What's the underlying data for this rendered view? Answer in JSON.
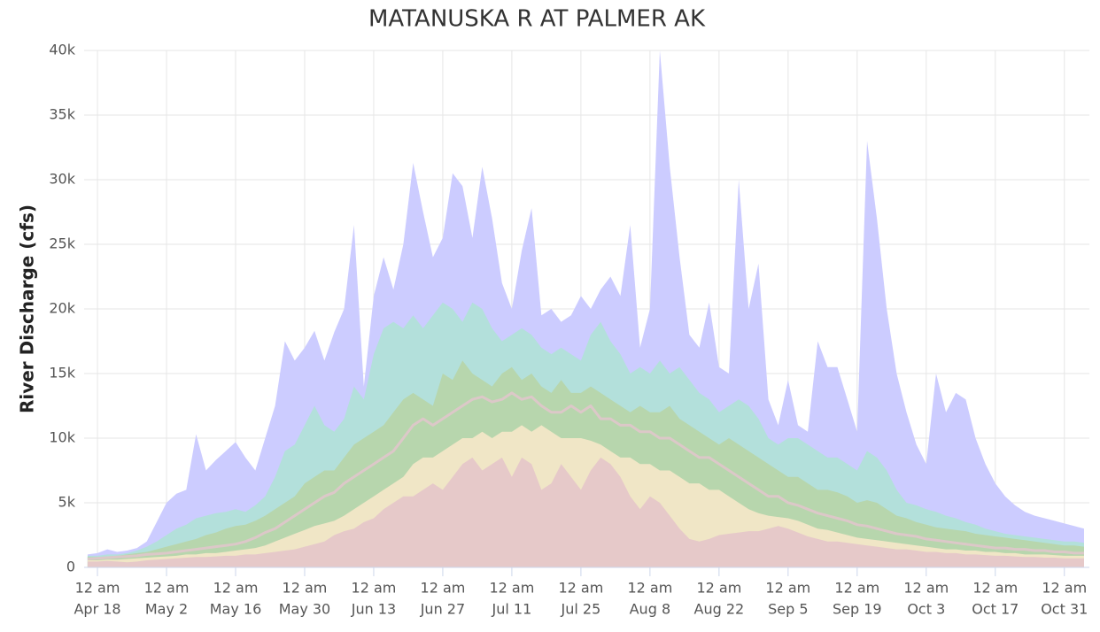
{
  "chart_data": {
    "type": "area",
    "title": "MATANUSKA R AT PALMER AK",
    "y_label": "River Discharge (cfs)",
    "x": [
      "Apr 16",
      "Apr 18",
      "Apr 20",
      "Apr 22",
      "Apr 24",
      "Apr 26",
      "Apr 28",
      "Apr 30",
      "May 2",
      "May 4",
      "May 6",
      "May 8",
      "May 10",
      "May 12",
      "May 14",
      "May 16",
      "May 18",
      "May 20",
      "May 22",
      "May 24",
      "May 26",
      "May 28",
      "May 30",
      "Jun 1",
      "Jun 3",
      "Jun 5",
      "Jun 7",
      "Jun 9",
      "Jun 11",
      "Jun 13",
      "Jun 15",
      "Jun 17",
      "Jun 19",
      "Jun 21",
      "Jun 23",
      "Jun 25",
      "Jun 27",
      "Jun 29",
      "Jul 1",
      "Jul 3",
      "Jul 5",
      "Jul 7",
      "Jul 9",
      "Jul 11",
      "Jul 13",
      "Jul 15",
      "Jul 17",
      "Jul 19",
      "Jul 21",
      "Jul 23",
      "Jul 25",
      "Jul 27",
      "Jul 29",
      "Jul 31",
      "Aug 2",
      "Aug 4",
      "Aug 6",
      "Aug 8",
      "Aug 10",
      "Aug 12",
      "Aug 14",
      "Aug 16",
      "Aug 18",
      "Aug 20",
      "Aug 22",
      "Aug 24",
      "Aug 26",
      "Aug 28",
      "Aug 30",
      "Sep 1",
      "Sep 3",
      "Sep 5",
      "Sep 7",
      "Sep 9",
      "Sep 11",
      "Sep 13",
      "Sep 15",
      "Sep 17",
      "Sep 19",
      "Sep 21",
      "Sep 23",
      "Sep 25",
      "Sep 27",
      "Sep 29",
      "Oct 1",
      "Oct 3",
      "Oct 5",
      "Oct 7",
      "Oct 9",
      "Oct 11",
      "Oct 13",
      "Oct 15",
      "Oct 17",
      "Oct 19",
      "Oct 21",
      "Oct 23",
      "Oct 25",
      "Oct 27",
      "Oct 29",
      "Oct 31",
      "Nov 2",
      "Nov 4"
    ],
    "xtick_time": "12 am",
    "xticks": [
      "Apr 18",
      "May 2",
      "May 16",
      "May 30",
      "Jun 13",
      "Jun 27",
      "Jul 11",
      "Jul 25",
      "Aug 8",
      "Aug 22",
      "Sep 5",
      "Sep 19",
      "Oct 3",
      "Oct 17",
      "Oct 31"
    ],
    "ylim": [
      0,
      40000
    ],
    "yticks": [
      0,
      {
        "value": 5000,
        "label": "5k"
      },
      {
        "value": 10000,
        "label": "10k"
      },
      {
        "value": 15000,
        "label": "15k"
      },
      {
        "value": 20000,
        "label": "20k"
      },
      {
        "value": 25000,
        "label": "25k"
      },
      {
        "value": 30000,
        "label": "30k"
      },
      {
        "value": 35000,
        "label": "35k"
      },
      {
        "value": 40000,
        "label": "40k"
      }
    ],
    "grid": true,
    "series": [
      {
        "type": "area",
        "color": "#ccccff",
        "values": [
          1000,
          1100,
          1400,
          1200,
          1300,
          1500,
          2000,
          3500,
          5000,
          5700,
          6000,
          10300,
          7500,
          8300,
          9000,
          9700,
          8500,
          7500,
          10000,
          12500,
          17500,
          16000,
          17000,
          18300,
          16000,
          18200,
          20000,
          26500,
          14000,
          21000,
          24000,
          21500,
          25000,
          31300,
          27500,
          24000,
          25500,
          30500,
          29500,
          25500,
          31000,
          27000,
          22000,
          20000,
          24500,
          27800,
          19500,
          20000,
          19000,
          19500,
          21000,
          20000,
          21500,
          22500,
          21000,
          26500,
          17000,
          20000,
          40000,
          31000,
          24000,
          18000,
          17000,
          20500,
          15500,
          15000,
          30000,
          20000,
          23500,
          13000,
          11000,
          14500,
          11000,
          10500,
          17500,
          15500,
          15500,
          13000,
          10500,
          33000,
          27000,
          20000,
          15000,
          12000,
          9500,
          8000,
          15000,
          12000,
          13500,
          13000,
          10000,
          8000,
          6500,
          5500,
          4800,
          4300,
          4000,
          3800,
          3600,
          3400,
          3200,
          3000
        ]
      },
      {
        "type": "area",
        "color": "#b3e0db",
        "values": [
          900,
          900,
          1000,
          1000,
          1100,
          1300,
          1600,
          2000,
          2500,
          3000,
          3300,
          3800,
          4000,
          4200,
          4300,
          4500,
          4300,
          4800,
          5500,
          7000,
          9000,
          9500,
          11000,
          12500,
          11000,
          10500,
          11500,
          14000,
          13000,
          16500,
          18500,
          19000,
          18500,
          19500,
          18500,
          19500,
          20500,
          20000,
          19000,
          20500,
          20000,
          18500,
          17500,
          18000,
          18500,
          18000,
          17000,
          16500,
          17000,
          16500,
          16000,
          18000,
          19000,
          17500,
          16500,
          15000,
          15500,
          15000,
          16000,
          15000,
          15500,
          14500,
          13500,
          13000,
          12000,
          12500,
          13000,
          12500,
          11500,
          10000,
          9500,
          10000,
          10000,
          9500,
          9000,
          8500,
          8500,
          8000,
          7500,
          9000,
          8500,
          7500,
          6000,
          5000,
          4800,
          4500,
          4300,
          4000,
          3800,
          3500,
          3300,
          3000,
          2800,
          2600,
          2500,
          2400,
          2300,
          2200,
          2100,
          2000,
          2000,
          1900
        ]
      },
      {
        "type": "area",
        "color": "#b7d6ad",
        "values": [
          800,
          800,
          850,
          900,
          1000,
          1100,
          1200,
          1400,
          1600,
          1800,
          2000,
          2200,
          2500,
          2700,
          3000,
          3200,
          3300,
          3600,
          4000,
          4500,
          5000,
          5500,
          6500,
          7000,
          7500,
          7500,
          8500,
          9500,
          10000,
          10500,
          11000,
          12000,
          13000,
          13500,
          13000,
          12500,
          15000,
          14500,
          16000,
          15000,
          14500,
          14000,
          15000,
          15500,
          14500,
          15000,
          14000,
          13500,
          14500,
          13500,
          13500,
          14000,
          13500,
          13000,
          12500,
          12000,
          12500,
          12000,
          12000,
          12500,
          11500,
          11000,
          10500,
          10000,
          9500,
          10000,
          9500,
          9000,
          8500,
          8000,
          7500,
          7000,
          7000,
          6500,
          6000,
          6000,
          5800,
          5500,
          5000,
          5200,
          5000,
          4500,
          4000,
          3800,
          3500,
          3300,
          3100,
          3000,
          2900,
          2800,
          2600,
          2500,
          2400,
          2300,
          2200,
          2100,
          2000,
          1900,
          1800,
          1700,
          1700,
          1600
        ]
      },
      {
        "type": "area",
        "color": "#f0e6c6",
        "values": [
          550,
          550,
          600,
          600,
          650,
          700,
          750,
          800,
          850,
          900,
          1000,
          1000,
          1100,
          1100,
          1200,
          1300,
          1400,
          1500,
          1700,
          2000,
          2300,
          2600,
          2900,
          3200,
          3400,
          3600,
          4000,
          4500,
          5000,
          5500,
          6000,
          6500,
          7000,
          8000,
          8500,
          8500,
          9000,
          9500,
          10000,
          10000,
          10500,
          10000,
          10500,
          10500,
          11000,
          10500,
          11000,
          10500,
          10000,
          10000,
          10000,
          9800,
          9500,
          9000,
          8500,
          8500,
          8000,
          8000,
          7500,
          7500,
          7000,
          6500,
          6500,
          6000,
          6000,
          5500,
          5000,
          4500,
          4200,
          4000,
          3900,
          3800,
          3600,
          3300,
          3000,
          2900,
          2700,
          2500,
          2300,
          2200,
          2100,
          2000,
          1900,
          1800,
          1700,
          1600,
          1500,
          1400,
          1400,
          1300,
          1300,
          1200,
          1200,
          1100,
          1100,
          1000,
          1000,
          1000,
          950,
          900,
          900,
          900
        ]
      },
      {
        "type": "area",
        "color": "#e6c9c9",
        "values": [
          450,
          450,
          500,
          450,
          400,
          450,
          550,
          600,
          650,
          700,
          750,
          800,
          800,
          850,
          900,
          900,
          1000,
          1000,
          1100,
          1200,
          1300,
          1400,
          1600,
          1800,
          2000,
          2500,
          2800,
          3000,
          3500,
          3800,
          4500,
          5000,
          5500,
          5500,
          6000,
          6500,
          6000,
          7000,
          8000,
          8500,
          7500,
          8000,
          8500,
          7000,
          8500,
          8000,
          6000,
          6500,
          8000,
          7000,
          6000,
          7500,
          8500,
          8000,
          7000,
          5500,
          4500,
          5500,
          5000,
          4000,
          3000,
          2200,
          2000,
          2200,
          2500,
          2600,
          2700,
          2800,
          2800,
          3000,
          3200,
          3000,
          2700,
          2400,
          2200,
          2000,
          2000,
          1900,
          1800,
          1700,
          1600,
          1500,
          1400,
          1400,
          1300,
          1200,
          1200,
          1100,
          1100,
          1000,
          1000,
          950,
          900,
          900,
          850,
          800,
          800,
          750,
          750,
          700,
          700,
          700
        ]
      },
      {
        "type": "line",
        "color": "#dcc8c8",
        "values": [
          650,
          700,
          750,
          800,
          850,
          900,
          1000,
          1050,
          1100,
          1200,
          1300,
          1400,
          1500,
          1600,
          1700,
          1800,
          2000,
          2300,
          2700,
          3000,
          3500,
          4000,
          4500,
          5000,
          5500,
          5800,
          6500,
          7000,
          7500,
          8000,
          8500,
          9000,
          10000,
          11000,
          11500,
          11000,
          11500,
          12000,
          12500,
          13000,
          13200,
          12800,
          13000,
          13500,
          13000,
          13200,
          12500,
          12000,
          12000,
          12500,
          12000,
          12500,
          11500,
          11500,
          11000,
          11000,
          10500,
          10500,
          10000,
          10000,
          9500,
          9000,
          8500,
          8500,
          8000,
          7500,
          7000,
          6500,
          6000,
          5500,
          5500,
          5000,
          4800,
          4500,
          4200,
          4000,
          3800,
          3600,
          3300,
          3200,
          3000,
          2800,
          2600,
          2500,
          2400,
          2200,
          2100,
          2000,
          1900,
          1800,
          1700,
          1600,
          1500,
          1500,
          1400,
          1400,
          1300,
          1300,
          1200,
          1200,
          1100,
          1100
        ]
      }
    ]
  }
}
